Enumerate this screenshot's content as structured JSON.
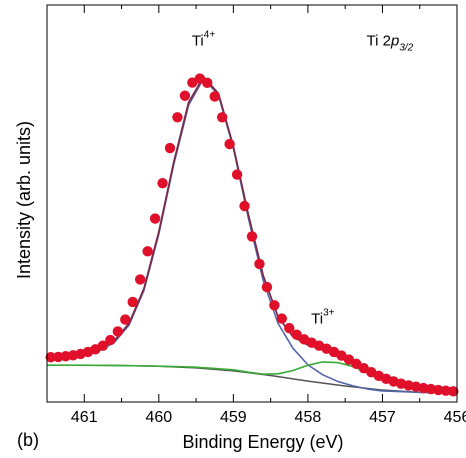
{
  "panel_label": "(b)",
  "chart_data": {
    "type": "line",
    "xlabel": "Binding Energy (eV)",
    "ylabel": "Intensity (arb. units)",
    "xlim": [
      461.5,
      456.0
    ],
    "ylim": [
      0,
      1.0
    ],
    "x_reversed": true,
    "xticks": [
      461,
      460,
      459,
      458,
      457,
      456
    ],
    "xtick_labels": [
      "461",
      "460",
      "459",
      "458",
      "457",
      "456"
    ],
    "yticks_shown": false,
    "annotations": [
      {
        "text": "Ti",
        "sup": "4+",
        "x": 459.4,
        "y": 1.05
      },
      {
        "text": "Ti",
        "sup": "3+",
        "x": 457.8,
        "y": 0.21
      },
      {
        "text": "Ti 2",
        "italic": "p",
        "sub": "3/2",
        "x": 456.9,
        "y": 1.05
      }
    ],
    "colors": {
      "data": "#e0102a",
      "envelope": "#7a2a4a",
      "ti4": "#5466a8",
      "ti3": "#3aaa35",
      "background": "#555555"
    },
    "data_points": {
      "name": "data",
      "x": [
        461.45,
        461.35,
        461.25,
        461.15,
        461.05,
        460.95,
        460.85,
        460.75,
        460.65,
        460.55,
        460.45,
        460.35,
        460.25,
        460.15,
        460.05,
        459.95,
        459.85,
        459.75,
        459.65,
        459.55,
        459.45,
        459.35,
        459.25,
        459.15,
        459.05,
        458.95,
        458.85,
        458.75,
        458.65,
        458.55,
        458.45,
        458.35,
        458.25,
        458.15,
        458.05,
        457.95,
        457.85,
        457.75,
        457.65,
        457.55,
        457.45,
        457.35,
        457.25,
        457.15,
        457.05,
        456.95,
        456.85,
        456.75,
        456.65,
        456.55,
        456.45,
        456.35,
        456.25,
        456.15,
        456.05
      ],
      "y": [
        0.108,
        0.109,
        0.111,
        0.114,
        0.118,
        0.124,
        0.132,
        0.143,
        0.16,
        0.186,
        0.222,
        0.275,
        0.343,
        0.428,
        0.527,
        0.634,
        0.74,
        0.833,
        0.898,
        0.938,
        0.95,
        0.937,
        0.896,
        0.833,
        0.752,
        0.66,
        0.565,
        0.473,
        0.39,
        0.32,
        0.265,
        0.225,
        0.196,
        0.176,
        0.162,
        0.152,
        0.143,
        0.134,
        0.124,
        0.113,
        0.101,
        0.088,
        0.075,
        0.063,
        0.052,
        0.043,
        0.035,
        0.028,
        0.023,
        0.019,
        0.015,
        0.012,
        0.009,
        0.007,
        0.005
      ]
    },
    "series": [
      {
        "key": "background",
        "x": [
          461.5,
          461.0,
          460.5,
          460.0,
          459.5,
          459.0,
          458.5,
          458.0,
          457.5,
          457.0,
          456.5,
          456.0
        ],
        "y": [
          0.084,
          0.084,
          0.083,
          0.081,
          0.076,
          0.067,
          0.053,
          0.036,
          0.021,
          0.009,
          0.002,
          0.0
        ]
      },
      {
        "key": "ti4",
        "x": [
          461.5,
          461.0,
          460.8,
          460.6,
          460.4,
          460.2,
          460.0,
          459.8,
          459.6,
          459.4,
          459.2,
          459.0,
          458.8,
          458.6,
          458.4,
          458.2,
          458.0,
          457.8,
          457.6,
          457.4,
          457.2,
          457.0,
          456.5,
          456.0
        ],
        "y": [
          0.104,
          0.115,
          0.128,
          0.152,
          0.205,
          0.31,
          0.48,
          0.69,
          0.87,
          0.95,
          0.9,
          0.74,
          0.53,
          0.34,
          0.21,
          0.135,
          0.085,
          0.055,
          0.035,
          0.022,
          0.012,
          0.006,
          0.002,
          0.0
        ]
      },
      {
        "key": "ti3",
        "x": [
          461.5,
          461.0,
          460.5,
          460.0,
          459.5,
          459.0,
          458.8,
          458.6,
          458.4,
          458.2,
          458.0,
          457.8,
          457.6,
          457.4,
          457.2,
          457.0,
          456.8,
          456.6,
          456.4,
          456.2,
          456.0
        ],
        "y": [
          0.084,
          0.084,
          0.083,
          0.081,
          0.078,
          0.07,
          0.063,
          0.057,
          0.058,
          0.068,
          0.084,
          0.094,
          0.092,
          0.08,
          0.063,
          0.046,
          0.031,
          0.02,
          0.012,
          0.007,
          0.004
        ]
      },
      {
        "key": "envelope",
        "x": [
          461.5,
          461.2,
          461.0,
          460.8,
          460.6,
          460.4,
          460.2,
          460.0,
          459.8,
          459.6,
          459.4,
          459.2,
          459.0,
          458.8,
          458.6,
          458.4,
          458.2,
          458.0,
          457.8,
          457.6,
          457.4,
          457.2,
          457.0,
          456.8,
          456.6,
          456.4,
          456.2,
          456.0
        ],
        "y": [
          0.106,
          0.112,
          0.118,
          0.131,
          0.157,
          0.21,
          0.315,
          0.487,
          0.697,
          0.878,
          0.955,
          0.905,
          0.745,
          0.54,
          0.355,
          0.23,
          0.17,
          0.145,
          0.131,
          0.111,
          0.087,
          0.063,
          0.044,
          0.03,
          0.02,
          0.012,
          0.007,
          0.004
        ]
      }
    ]
  }
}
